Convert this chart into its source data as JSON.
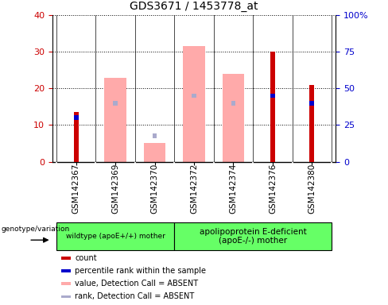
{
  "title": "GDS3671 / 1453778_at",
  "samples": [
    "GSM142367",
    "GSM142369",
    "GSM142370",
    "GSM142372",
    "GSM142374",
    "GSM142376",
    "GSM142380"
  ],
  "count_values": [
    13.5,
    0,
    0,
    0,
    0,
    30.0,
    21.0
  ],
  "rank_values": [
    12.0,
    0,
    0,
    0,
    0,
    18.0,
    16.0
  ],
  "pink_value_absent": [
    0,
    23.0,
    5.0,
    31.5,
    24.0,
    0,
    0
  ],
  "blue_rank_absent": [
    0,
    16.0,
    7.0,
    18.0,
    16.0,
    0,
    0
  ],
  "left_ylim": [
    0,
    40
  ],
  "right_ylim": [
    0,
    100
  ],
  "left_yticks": [
    0,
    10,
    20,
    30,
    40
  ],
  "right_yticks": [
    0,
    25,
    50,
    75,
    100
  ],
  "right_yticklabels": [
    "0",
    "25",
    "50",
    "75",
    "100%"
  ],
  "left_ycolor": "#cc0000",
  "right_ycolor": "#0000cc",
  "group1_label": "wildtype (apoE+/+) mother",
  "group2_label": "apolipoprotein E-deficient\n(apoE-/-) mother",
  "genotype_label": "genotype/variation",
  "legend_labels": [
    "count",
    "percentile rank within the sample",
    "value, Detection Call = ABSENT",
    "rank, Detection Call = ABSENT"
  ],
  "legend_colors": [
    "#cc0000",
    "#0000cc",
    "#ffaaaa",
    "#aaaacc"
  ],
  "group_color": "#66ff66",
  "gray_color": "#d3d3d3"
}
